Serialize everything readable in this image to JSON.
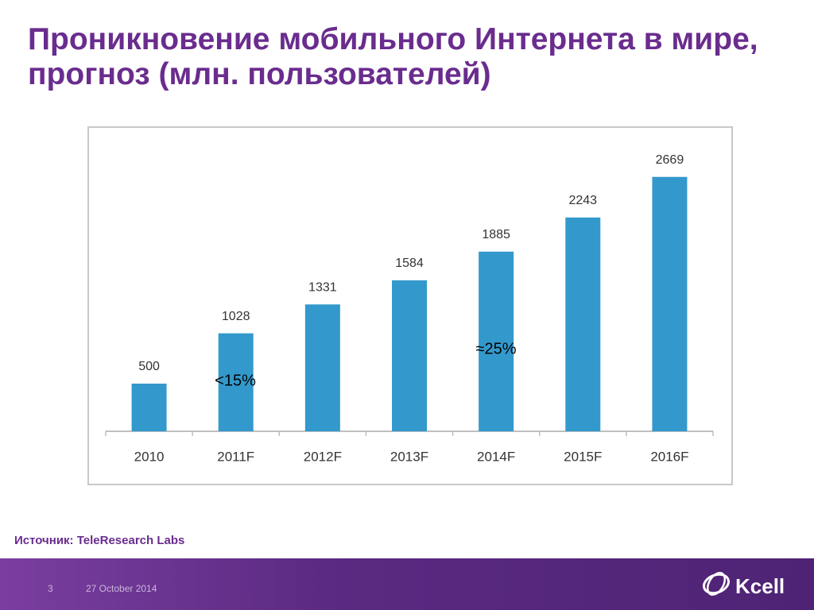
{
  "slide": {
    "title": "Проникновение мобильного Интернета в мире, прогноз (млн. пользователей)",
    "source": "Источник: TeleResearch Labs",
    "page_number": "3",
    "date": "27 October 2014",
    "logo": "Kcell"
  },
  "chart_data": {
    "type": "bar",
    "categories": [
      "2010",
      "2011F",
      "2012F",
      "2013F",
      "2014F",
      "2015F",
      "2016F"
    ],
    "values": [
      500,
      1028,
      1331,
      1584,
      1885,
      2243,
      2669
    ],
    "color": "#3399cc",
    "ylim": [
      0,
      3000
    ],
    "annotations": [
      "<15%",
      "≈25%"
    ]
  }
}
